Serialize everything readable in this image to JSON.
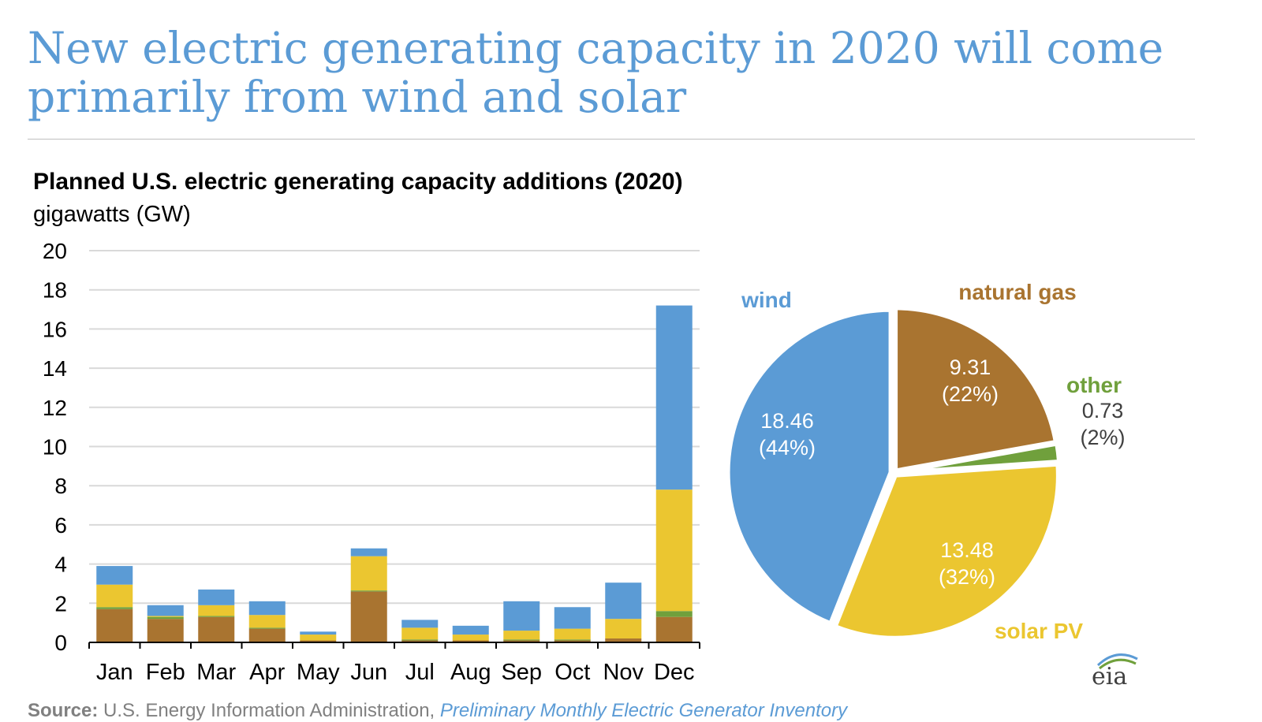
{
  "headline": "New electric generating capacity in 2020 will come primarily from wind and solar",
  "colors": {
    "wind": "#5b9bd5",
    "natural_gas": "#a97430",
    "solar": "#ebc630",
    "other": "#70a03c",
    "grid": "#d9d9d9",
    "axis": "#000000"
  },
  "source": {
    "label": "Source:",
    "text": "U.S. Energy Information Administration,",
    "publication": "Preliminary Monthly Electric Generator Inventory"
  },
  "logo_text": "eia",
  "chart_data": [
    {
      "type": "bar",
      "stacked": true,
      "title": "Planned U.S. electric generating capacity additions (2020)",
      "ylabel": "gigawatts (GW)",
      "ylim": [
        0,
        20
      ],
      "yticks": [
        0,
        2,
        4,
        6,
        8,
        10,
        12,
        14,
        16,
        18,
        20
      ],
      "grid": true,
      "categories": [
        "Jan",
        "Feb",
        "Mar",
        "Apr",
        "May",
        "Jun",
        "Jul",
        "Aug",
        "Sep",
        "Oct",
        "Nov",
        "Dec"
      ],
      "series": [
        {
          "name": "natural gas",
          "color": "#a97430",
          "values": [
            1.7,
            1.2,
            1.3,
            0.7,
            0.1,
            2.6,
            0.1,
            0.1,
            0.1,
            0.1,
            0.2,
            1.3
          ]
        },
        {
          "name": "other",
          "color": "#70a03c",
          "values": [
            0.1,
            0.1,
            0.05,
            0.05,
            0.0,
            0.05,
            0.05,
            0.0,
            0.05,
            0.05,
            0.0,
            0.3
          ]
        },
        {
          "name": "solar PV",
          "color": "#ebc630",
          "values": [
            1.15,
            0.05,
            0.55,
            0.65,
            0.3,
            1.75,
            0.6,
            0.3,
            0.45,
            0.55,
            1.0,
            6.2
          ]
        },
        {
          "name": "wind",
          "color": "#5b9bd5",
          "values": [
            0.95,
            0.55,
            0.8,
            0.7,
            0.15,
            0.4,
            0.4,
            0.45,
            1.5,
            1.1,
            1.85,
            9.4
          ]
        }
      ]
    },
    {
      "type": "pie",
      "slices": [
        {
          "name": "natural gas",
          "value": 9.31,
          "value_label": "9.31",
          "pct_label": "(22%)",
          "color": "#a97430"
        },
        {
          "name": "other",
          "value": 0.73,
          "value_label": "0.73",
          "pct_label": "(2%)",
          "color": "#70a03c"
        },
        {
          "name": "solar PV",
          "value": 13.48,
          "value_label": "13.48",
          "pct_label": "(32%)",
          "color": "#ebc630"
        },
        {
          "name": "wind",
          "value": 18.46,
          "value_label": "18.46",
          "pct_label": "(44%)",
          "color": "#5b9bd5"
        }
      ]
    }
  ]
}
